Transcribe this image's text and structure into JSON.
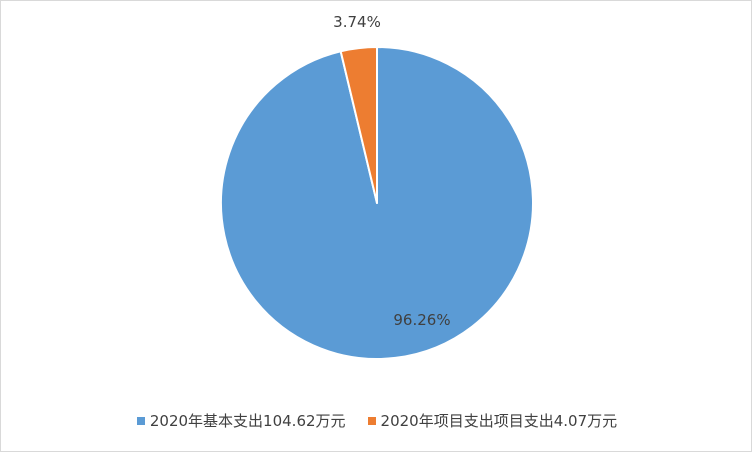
{
  "chart_data": {
    "type": "pie",
    "title": "",
    "slices": [
      {
        "name": "2020年基本支出104.62万元",
        "value": 96.26,
        "label": "96.26%",
        "color": "#5b9bd5"
      },
      {
        "name": "2020年项目支出项目支出4.07万元",
        "value": 3.74,
        "label": "3.74%",
        "color": "#ed7d31"
      }
    ],
    "start_angle_deg": 0,
    "direction": "clockwise",
    "legend_position": "bottom"
  }
}
